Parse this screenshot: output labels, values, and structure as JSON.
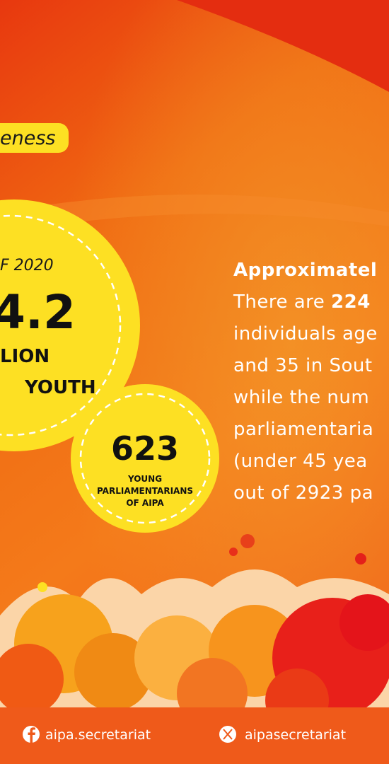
{
  "tag": "eness",
  "stat_main": {
    "year": "F 2020",
    "number": "4.2",
    "unit": "LION",
    "label": "YOUTH"
  },
  "stat_secondary": {
    "number": "623",
    "label_lines": [
      "YOUNG",
      "PARLIAMENTARIANS",
      "OF AIPA"
    ]
  },
  "paragraph": {
    "heading": "Approximatel",
    "lines": [
      {
        "text": "There are ",
        "bold": "224"
      },
      "individuals age",
      "and 35 in Sout",
      "while the num",
      "parliamentaria",
      "(under 45 yea",
      "out of 2923 pa"
    ]
  },
  "footer": {
    "facebook": "aipa.secretariat",
    "x": "aipasecretariat"
  }
}
